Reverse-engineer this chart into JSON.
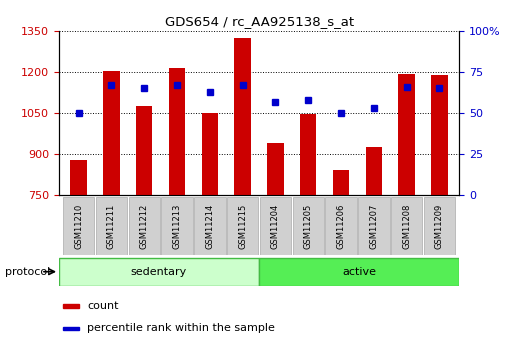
{
  "title": "GDS654 / rc_AA925138_s_at",
  "samples": [
    "GSM11210",
    "GSM11211",
    "GSM11212",
    "GSM11213",
    "GSM11214",
    "GSM11215",
    "GSM11204",
    "GSM11205",
    "GSM11206",
    "GSM11207",
    "GSM11208",
    "GSM11209"
  ],
  "count_values": [
    878,
    1205,
    1075,
    1215,
    1050,
    1325,
    940,
    1047,
    843,
    925,
    1193,
    1190
  ],
  "percentile_values": [
    50,
    67,
    65,
    67,
    63,
    67,
    57,
    58,
    50,
    53,
    66,
    65
  ],
  "ylim_left": [
    750,
    1350
  ],
  "ylim_right": [
    0,
    100
  ],
  "yticks_left": [
    750,
    900,
    1050,
    1200,
    1350
  ],
  "yticks_right": [
    0,
    25,
    50,
    75,
    100
  ],
  "groups": [
    {
      "label": "sedentary",
      "n": 6,
      "color": "#ccffcc",
      "border": "#44bb44"
    },
    {
      "label": "active",
      "n": 6,
      "color": "#55ee55",
      "border": "#44bb44"
    }
  ],
  "bar_color": "#cc0000",
  "dot_color": "#0000cc",
  "bar_width": 0.5,
  "bar_bottom": 750,
  "protocol_label": "protocol",
  "legend_count": "count",
  "legend_percentile": "percentile rank within the sample",
  "left_axis_color": "#cc0000",
  "right_axis_color": "#0000cc",
  "tick_bg_color": "#d0d0d0",
  "tick_border_color": "#aaaaaa",
  "divider_color": "#44bb44"
}
